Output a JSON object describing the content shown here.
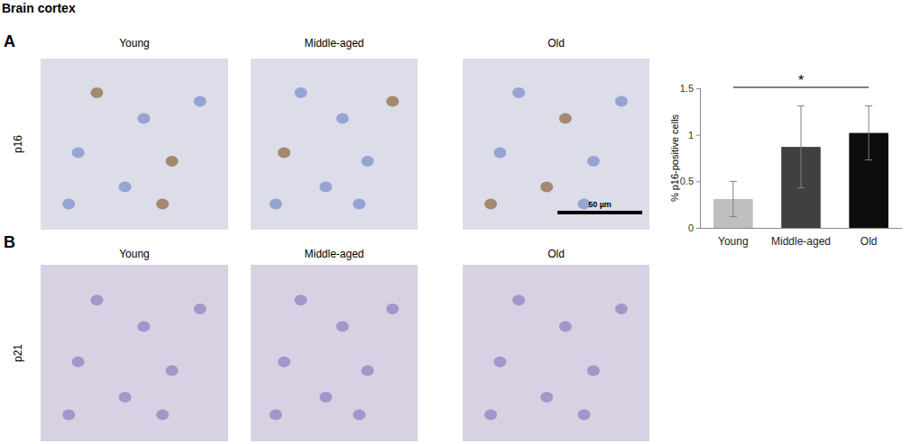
{
  "figure": {
    "title": "Brain cortex",
    "panels": [
      {
        "label": "A",
        "row_label": "p16",
        "columns": [
          "Young",
          "Middle-aged",
          "Old"
        ],
        "scale_bar": "50 µm"
      },
      {
        "label": "B",
        "row_label": "p21",
        "columns": [
          "Young",
          "Middle-aged",
          "Old"
        ]
      }
    ]
  },
  "chart_data": {
    "type": "bar",
    "categories": [
      "Young",
      "Middle-aged",
      "Old"
    ],
    "values": [
      0.31,
      0.87,
      1.02
    ],
    "errors": [
      0.19,
      0.44,
      0.29
    ],
    "colors": [
      "#bfbfbf",
      "#404040",
      "#0d0d0d"
    ],
    "y_label": "% p16-positive cells",
    "ylim": [
      0,
      1.5
    ],
    "yticks": [
      0,
      0.5,
      1,
      1.5
    ],
    "annotations": [
      {
        "text": "*",
        "between": [
          "Young",
          "Old"
        ]
      }
    ]
  }
}
